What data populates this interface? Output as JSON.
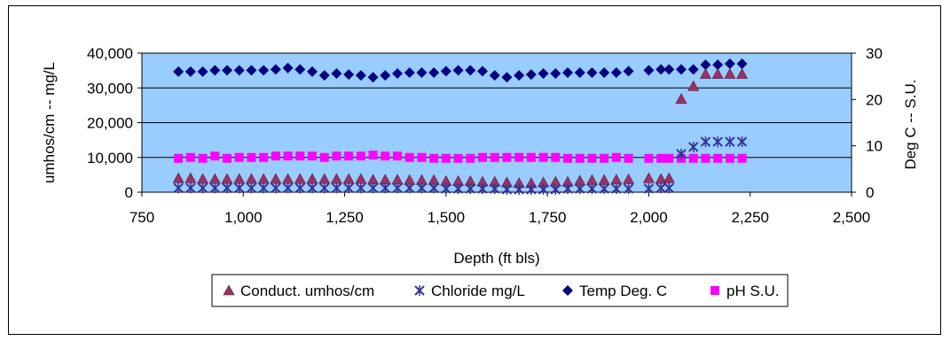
{
  "chart_data": {
    "type": "scatter",
    "xlabel": "Depth (ft bls)",
    "ylabel": "umhos/cm -- mg/L",
    "y2label": "Deg C -- S.U.",
    "xlim": [
      750,
      2500
    ],
    "ylim": [
      0,
      40000
    ],
    "y2lim": [
      0,
      30
    ],
    "xticks": [
      "750",
      "1,000",
      "1,250",
      "1,500",
      "1,750",
      "2,000",
      "2,250",
      "2,500"
    ],
    "xtick_values": [
      750,
      1000,
      1250,
      1500,
      1750,
      2000,
      2250,
      2500
    ],
    "yticks": [
      "0",
      "10,000",
      "20,000",
      "30,000",
      "40,000"
    ],
    "ytick_values": [
      0,
      10000,
      20000,
      30000,
      40000
    ],
    "y2ticks": [
      "0",
      "10",
      "20",
      "30"
    ],
    "y2tick_values": [
      0,
      10,
      20,
      30
    ],
    "plot_background": "#99CCFF",
    "grid": "horizontal",
    "legend_position": "bottom",
    "series": [
      {
        "name": "Conduct. umhos/cm",
        "axis": "left",
        "marker": "triangle",
        "color": "#993366",
        "x": [
          840,
          870,
          900,
          930,
          960,
          990,
          1020,
          1050,
          1080,
          1110,
          1140,
          1170,
          1200,
          1230,
          1260,
          1290,
          1320,
          1350,
          1380,
          1410,
          1440,
          1470,
          1500,
          1530,
          1560,
          1590,
          1620,
          1650,
          1680,
          1710,
          1740,
          1770,
          1800,
          1830,
          1860,
          1890,
          1920,
          1950,
          2000,
          2030,
          2050,
          2080,
          2110,
          2140,
          2170,
          2200,
          2230
        ],
        "y": [
          4000,
          4000,
          3800,
          3800,
          3800,
          3800,
          3800,
          3800,
          3800,
          3800,
          3800,
          3800,
          3800,
          3800,
          3800,
          3800,
          3600,
          3600,
          3600,
          3500,
          3500,
          3500,
          3200,
          3200,
          3200,
          3000,
          3000,
          2800,
          2600,
          2600,
          2800,
          3000,
          3000,
          3300,
          3500,
          3500,
          3600,
          3700,
          4000,
          3800,
          4000,
          26800,
          30500,
          34000,
          34000,
          34000,
          34000
        ]
      },
      {
        "name": "Chloride mg/L",
        "axis": "left",
        "marker": "x",
        "color": "#333399",
        "x": [
          840,
          870,
          900,
          930,
          960,
          990,
          1020,
          1050,
          1080,
          1110,
          1140,
          1170,
          1200,
          1230,
          1260,
          1290,
          1320,
          1350,
          1380,
          1410,
          1440,
          1470,
          1500,
          1530,
          1560,
          1590,
          1620,
          1650,
          1680,
          1710,
          1740,
          1770,
          1800,
          1830,
          1860,
          1890,
          1920,
          1950,
          2000,
          2030,
          2050,
          2080,
          2110,
          2140,
          2170,
          2200,
          2230
        ],
        "y": [
          1200,
          1200,
          1200,
          1200,
          1200,
          1200,
          1200,
          1200,
          1200,
          1200,
          1200,
          1200,
          1200,
          1200,
          1200,
          1200,
          1200,
          1200,
          1200,
          1200,
          1200,
          1200,
          1000,
          1000,
          1000,
          1000,
          1000,
          800,
          800,
          800,
          800,
          800,
          1000,
          1000,
          1000,
          1000,
          1000,
          1000,
          1000,
          1200,
          1200,
          11000,
          13000,
          14500,
          14500,
          14500,
          14500
        ]
      },
      {
        "name": "Temp Deg. C",
        "axis": "right",
        "marker": "diamond",
        "color": "#000080",
        "x": [
          840,
          870,
          900,
          930,
          960,
          990,
          1020,
          1050,
          1080,
          1110,
          1140,
          1170,
          1200,
          1230,
          1260,
          1290,
          1320,
          1350,
          1380,
          1410,
          1440,
          1470,
          1500,
          1530,
          1560,
          1590,
          1620,
          1650,
          1680,
          1710,
          1740,
          1770,
          1800,
          1830,
          1860,
          1890,
          1920,
          1950,
          2000,
          2030,
          2050,
          2080,
          2110,
          2140,
          2170,
          2200,
          2230
        ],
        "y": [
          26,
          26,
          26,
          26.3,
          26.3,
          26.3,
          26.3,
          26.3,
          26.5,
          26.8,
          26.5,
          26,
          25.2,
          25.6,
          25.4,
          25.2,
          24.8,
          25.2,
          25.6,
          25.8,
          25.8,
          25.8,
          26.1,
          26.3,
          26.3,
          26.1,
          25.2,
          24.8,
          25.2,
          25.4,
          25.6,
          25.6,
          25.8,
          25.8,
          25.8,
          25.8,
          25.8,
          26.1,
          26.3,
          26.5,
          26.5,
          26.5,
          26.5,
          27.5,
          27.5,
          27.7,
          27.7
        ]
      },
      {
        "name": "pH S.U.",
        "axis": "right",
        "marker": "square",
        "color": "#FF00FF",
        "x": [
          840,
          870,
          900,
          930,
          960,
          990,
          1020,
          1050,
          1080,
          1110,
          1140,
          1170,
          1200,
          1230,
          1260,
          1290,
          1320,
          1350,
          1380,
          1410,
          1440,
          1470,
          1500,
          1530,
          1560,
          1590,
          1620,
          1650,
          1680,
          1710,
          1740,
          1770,
          1800,
          1830,
          1860,
          1890,
          1920,
          1950,
          2000,
          2030,
          2050,
          2080,
          2110,
          2140,
          2170,
          2200,
          2230
        ],
        "y": [
          7.3,
          7.5,
          7.3,
          7.8,
          7.3,
          7.5,
          7.5,
          7.5,
          7.8,
          7.8,
          7.8,
          7.8,
          7.5,
          7.8,
          7.8,
          7.8,
          8,
          7.8,
          7.8,
          7.5,
          7.5,
          7.3,
          7.3,
          7.3,
          7.3,
          7.5,
          7.5,
          7.5,
          7.5,
          7.5,
          7.5,
          7.5,
          7.3,
          7.3,
          7.3,
          7.3,
          7.5,
          7.3,
          7.3,
          7.3,
          7.3,
          7.3,
          7.3,
          7.3,
          7.3,
          7.3,
          7.3
        ]
      }
    ]
  }
}
